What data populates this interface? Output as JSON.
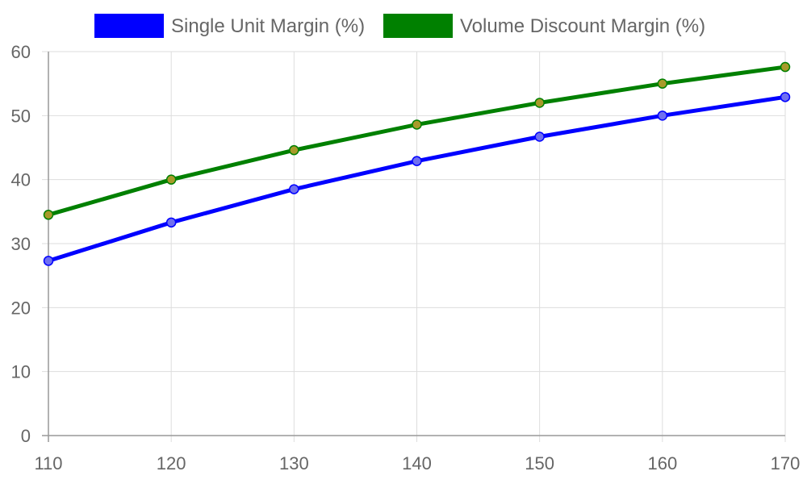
{
  "chart_data": {
    "type": "line",
    "x": [
      110,
      120,
      130,
      140,
      150,
      160,
      170
    ],
    "xlim": [
      110,
      170
    ],
    "ylim": [
      0,
      60
    ],
    "x_ticks": [
      "110",
      "120",
      "130",
      "140",
      "150",
      "160",
      "170"
    ],
    "y_ticks": [
      "0",
      "10",
      "20",
      "30",
      "40",
      "50",
      "60"
    ],
    "grid": true,
    "legend_position": "top-center",
    "series": [
      {
        "name": "Single Unit Margin (%)",
        "color": "#0000ff",
        "point_fill": "#6f6ff0",
        "values": [
          27.3,
          33.3,
          38.5,
          42.9,
          46.7,
          50.0,
          52.9
        ]
      },
      {
        "name": "Volume Discount Margin (%)",
        "color": "#008000",
        "point_fill": "#a89a2a",
        "values": [
          34.5,
          40.0,
          44.6,
          48.6,
          52.0,
          55.0,
          57.6
        ]
      }
    ]
  }
}
